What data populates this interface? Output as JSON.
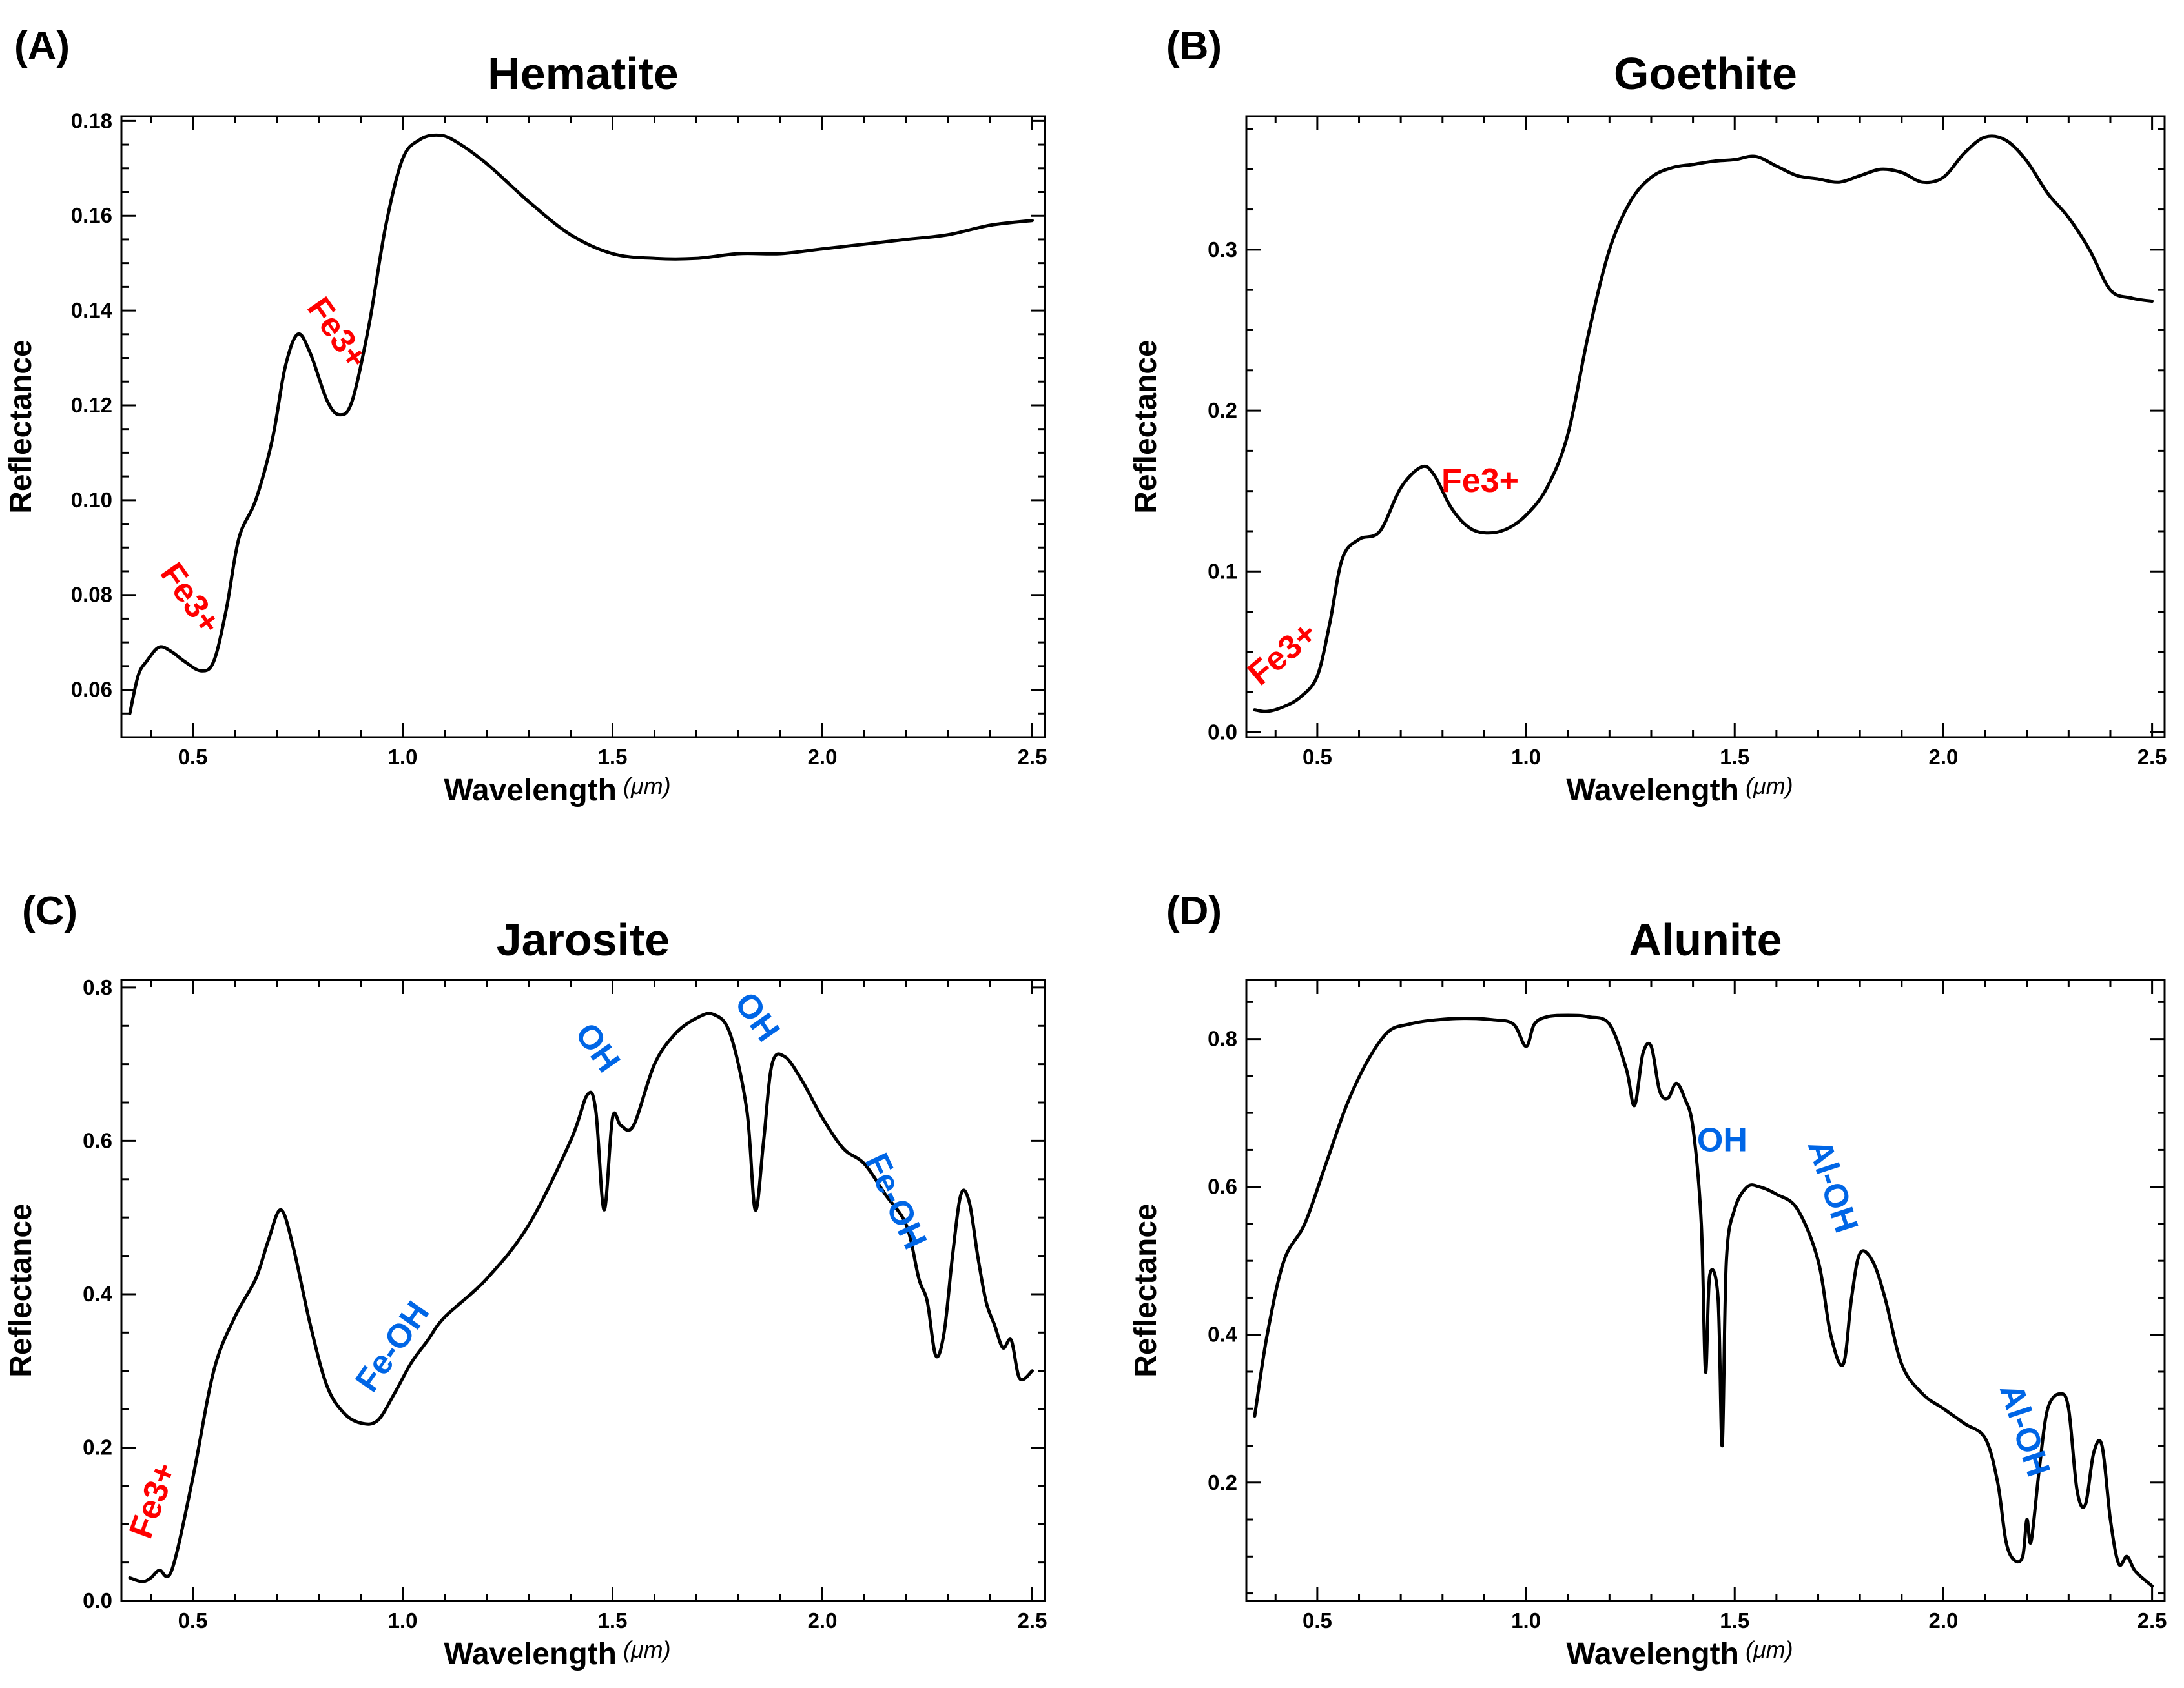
{
  "figure": {
    "units": "μm",
    "colors": {
      "line": "#000000",
      "fe3": "#ff0000",
      "oh": "#0066e6"
    }
  },
  "chart_data": [
    {
      "panel": "(A)",
      "type": "line",
      "title": "Hematite",
      "xlabel": "Wavelength",
      "xunit": "(μm)",
      "ylabel": "Reflectance",
      "xlim": [
        0.33,
        2.53
      ],
      "ylim": [
        0.05,
        0.181
      ],
      "xticks": [
        0.5,
        1.0,
        1.5,
        2.0,
        2.5
      ],
      "xtick_labels": [
        "0.5",
        "1.0",
        "1.5",
        "2.0",
        "2.5"
      ],
      "yticks": [
        0.06,
        0.08,
        0.1,
        0.12,
        0.14,
        0.16,
        0.18
      ],
      "ytick_labels": [
        "0.06",
        "0.08",
        "0.10",
        "0.12",
        "0.14",
        "0.16",
        "0.18"
      ],
      "series": [
        {
          "name": "Hematite",
          "x": [
            0.35,
            0.37,
            0.39,
            0.42,
            0.45,
            0.48,
            0.52,
            0.55,
            0.58,
            0.61,
            0.65,
            0.69,
            0.72,
            0.75,
            0.78,
            0.82,
            0.85,
            0.88,
            0.92,
            0.96,
            1.0,
            1.04,
            1.08,
            1.12,
            1.2,
            1.3,
            1.4,
            1.5,
            1.6,
            1.7,
            1.8,
            1.9,
            2.0,
            2.1,
            2.2,
            2.3,
            2.4,
            2.5
          ],
          "y": [
            0.055,
            0.063,
            0.066,
            0.069,
            0.068,
            0.066,
            0.064,
            0.066,
            0.077,
            0.092,
            0.1,
            0.113,
            0.128,
            0.135,
            0.131,
            0.121,
            0.118,
            0.121,
            0.137,
            0.158,
            0.172,
            0.176,
            0.177,
            0.176,
            0.171,
            0.163,
            0.156,
            0.152,
            0.151,
            0.151,
            0.152,
            0.152,
            0.153,
            0.154,
            0.155,
            0.156,
            0.158,
            0.159
          ]
        }
      ],
      "annotations": [
        {
          "text": "Fe3+",
          "color": "red",
          "x": 0.49,
          "y": 0.079,
          "rotation": 55
        },
        {
          "text": "Fe3+",
          "color": "red",
          "x": 0.84,
          "y": 0.135,
          "rotation": 55
        }
      ]
    },
    {
      "panel": "(B)",
      "type": "line",
      "title": "Goethite",
      "xlabel": "Wavelength",
      "xunit": "(μm)",
      "ylabel": "Reflectance",
      "xlim": [
        0.33,
        2.53
      ],
      "ylim": [
        -0.003,
        0.383
      ],
      "xticks": [
        0.5,
        1.0,
        1.5,
        2.0,
        2.5
      ],
      "xtick_labels": [
        "0.5",
        "1.0",
        "1.5",
        "2.0",
        "2.5"
      ],
      "yticks": [
        0.0,
        0.1,
        0.2,
        0.3
      ],
      "ytick_labels": [
        "0.0",
        "0.1",
        "0.2",
        "0.3"
      ],
      "series": [
        {
          "name": "Goethite",
          "x": [
            0.35,
            0.38,
            0.42,
            0.46,
            0.5,
            0.53,
            0.56,
            0.6,
            0.65,
            0.7,
            0.75,
            0.78,
            0.82,
            0.86,
            0.9,
            0.95,
            1.0,
            1.05,
            1.1,
            1.15,
            1.2,
            1.25,
            1.3,
            1.35,
            1.4,
            1.45,
            1.5,
            1.55,
            1.6,
            1.65,
            1.7,
            1.75,
            1.8,
            1.85,
            1.9,
            1.95,
            2.0,
            2.05,
            2.1,
            2.15,
            2.2,
            2.25,
            2.3,
            2.35,
            2.4,
            2.45,
            2.5
          ],
          "y": [
            0.014,
            0.013,
            0.016,
            0.022,
            0.035,
            0.068,
            0.108,
            0.12,
            0.125,
            0.152,
            0.165,
            0.16,
            0.14,
            0.128,
            0.124,
            0.126,
            0.135,
            0.152,
            0.185,
            0.248,
            0.3,
            0.33,
            0.345,
            0.351,
            0.353,
            0.355,
            0.356,
            0.358,
            0.352,
            0.346,
            0.344,
            0.342,
            0.346,
            0.35,
            0.348,
            0.342,
            0.345,
            0.36,
            0.37,
            0.368,
            0.355,
            0.335,
            0.32,
            0.3,
            0.275,
            0.27,
            0.268
          ]
        }
      ],
      "annotations": [
        {
          "text": "Fe3+",
          "color": "red",
          "x": 0.42,
          "y": 0.048,
          "rotation": -40
        },
        {
          "text": "Fe3+",
          "color": "red",
          "x": 0.89,
          "y": 0.155,
          "rotation": 0
        }
      ]
    },
    {
      "panel": "(C)",
      "type": "line",
      "title": "Jarosite",
      "xlabel": "Wavelength",
      "xunit": "(μm)",
      "ylabel": "Reflectance",
      "xlim": [
        0.33,
        2.53
      ],
      "ylim": [
        0.0,
        0.81
      ],
      "xticks": [
        0.5,
        1.0,
        1.5,
        2.0,
        2.5
      ],
      "xtick_labels": [
        "0.5",
        "1.0",
        "1.5",
        "2.0",
        "2.5"
      ],
      "yticks": [
        0.0,
        0.2,
        0.4,
        0.6,
        0.8
      ],
      "ytick_labels": [
        "0.0",
        "0.2",
        "0.4",
        "0.6",
        "0.8"
      ],
      "series": [
        {
          "name": "Jarosite",
          "x": [
            0.35,
            0.38,
            0.4,
            0.42,
            0.45,
            0.5,
            0.55,
            0.6,
            0.65,
            0.68,
            0.71,
            0.74,
            0.78,
            0.82,
            0.86,
            0.9,
            0.94,
            0.98,
            1.02,
            1.06,
            1.1,
            1.2,
            1.3,
            1.4,
            1.44,
            1.46,
            1.48,
            1.5,
            1.52,
            1.55,
            1.6,
            1.65,
            1.7,
            1.74,
            1.78,
            1.82,
            1.84,
            1.86,
            1.88,
            1.91,
            1.95,
            2.0,
            2.05,
            2.1,
            2.15,
            2.2,
            2.23,
            2.25,
            2.27,
            2.29,
            2.31,
            2.33,
            2.35,
            2.37,
            2.39,
            2.41,
            2.43,
            2.45,
            2.47,
            2.5
          ],
          "y": [
            0.03,
            0.025,
            0.03,
            0.04,
            0.04,
            0.16,
            0.3,
            0.37,
            0.42,
            0.47,
            0.51,
            0.46,
            0.36,
            0.28,
            0.245,
            0.232,
            0.235,
            0.27,
            0.31,
            0.34,
            0.37,
            0.42,
            0.49,
            0.6,
            0.66,
            0.64,
            0.51,
            0.63,
            0.62,
            0.62,
            0.7,
            0.74,
            0.76,
            0.765,
            0.74,
            0.64,
            0.51,
            0.6,
            0.7,
            0.71,
            0.68,
            0.63,
            0.59,
            0.57,
            0.53,
            0.49,
            0.42,
            0.39,
            0.32,
            0.35,
            0.45,
            0.53,
            0.52,
            0.45,
            0.39,
            0.36,
            0.33,
            0.34,
            0.29,
            0.3
          ]
        }
      ],
      "annotations": [
        {
          "text": "Fe3+",
          "color": "red",
          "x": 0.41,
          "y": 0.13,
          "rotation": -70
        },
        {
          "text": "Fe-OH",
          "color": "blue",
          "x": 0.98,
          "y": 0.33,
          "rotation": -55
        },
        {
          "text": "OH",
          "color": "blue",
          "x": 1.46,
          "y": 0.72,
          "rotation": 55
        },
        {
          "text": "OH",
          "color": "blue",
          "x": 1.84,
          "y": 0.76,
          "rotation": 55
        },
        {
          "text": "Fe-OH",
          "color": "blue",
          "x": 2.17,
          "y": 0.52,
          "rotation": 65
        }
      ]
    },
    {
      "panel": "(D)",
      "type": "line",
      "title": "Alunite",
      "xlabel": "Wavelength",
      "xunit": "(μm)",
      "ylabel": "Reflectance",
      "xlim": [
        0.33,
        2.53
      ],
      "ylim": [
        0.04,
        0.88
      ],
      "xticks": [
        0.5,
        1.0,
        1.5,
        2.0,
        2.5
      ],
      "xtick_labels": [
        "0.5",
        "1.0",
        "1.5",
        "2.0",
        "2.5"
      ],
      "yticks": [
        0.2,
        0.4,
        0.6,
        0.8
      ],
      "ytick_labels": [
        "0.2",
        "0.4",
        "0.6",
        "0.8"
      ],
      "series": [
        {
          "name": "Alunite",
          "x": [
            0.35,
            0.38,
            0.42,
            0.47,
            0.52,
            0.57,
            0.62,
            0.67,
            0.72,
            0.77,
            0.85,
            0.92,
            0.97,
            1.0,
            1.02,
            1.05,
            1.1,
            1.15,
            1.2,
            1.24,
            1.26,
            1.28,
            1.3,
            1.32,
            1.34,
            1.36,
            1.38,
            1.4,
            1.42,
            1.43,
            1.44,
            1.46,
            1.47,
            1.48,
            1.5,
            1.53,
            1.56,
            1.6,
            1.65,
            1.7,
            1.73,
            1.76,
            1.78,
            1.8,
            1.83,
            1.86,
            1.9,
            1.95,
            2.0,
            2.05,
            2.1,
            2.13,
            2.15,
            2.17,
            2.19,
            2.2,
            2.21,
            2.23,
            2.25,
            2.28,
            2.3,
            2.32,
            2.34,
            2.36,
            2.38,
            2.4,
            2.42,
            2.44,
            2.46,
            2.5
          ],
          "y": [
            0.29,
            0.4,
            0.5,
            0.55,
            0.63,
            0.71,
            0.77,
            0.81,
            0.82,
            0.825,
            0.828,
            0.826,
            0.82,
            0.79,
            0.82,
            0.83,
            0.832,
            0.83,
            0.82,
            0.76,
            0.71,
            0.78,
            0.79,
            0.73,
            0.72,
            0.74,
            0.72,
            0.68,
            0.55,
            0.35,
            0.48,
            0.45,
            0.25,
            0.5,
            0.57,
            0.6,
            0.6,
            0.59,
            0.57,
            0.5,
            0.4,
            0.36,
            0.45,
            0.51,
            0.5,
            0.45,
            0.36,
            0.32,
            0.3,
            0.28,
            0.26,
            0.2,
            0.12,
            0.095,
            0.1,
            0.15,
            0.12,
            0.22,
            0.3,
            0.32,
            0.3,
            0.19,
            0.17,
            0.24,
            0.25,
            0.15,
            0.09,
            0.1,
            0.08,
            0.06
          ]
        }
      ],
      "annotations": [
        {
          "text": "OH",
          "color": "blue",
          "x": 1.47,
          "y": 0.66,
          "rotation": 0
        },
        {
          "text": "Al-OH",
          "color": "blue",
          "x": 1.73,
          "y": 0.6,
          "rotation": 72
        },
        {
          "text": "Al-OH",
          "color": "blue",
          "x": 2.19,
          "y": 0.27,
          "rotation": 72
        }
      ]
    }
  ]
}
